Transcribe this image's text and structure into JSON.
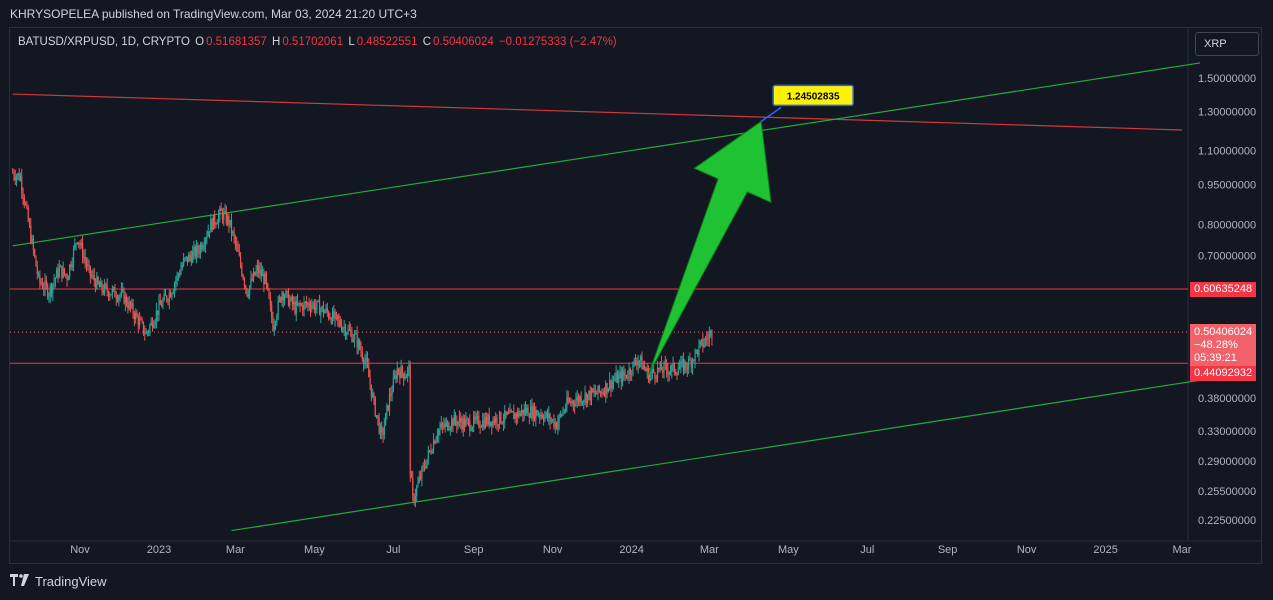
{
  "header": {
    "publisher_line": "KHRYSOPELEA published on TradingView.com, Mar 03, 2024 21:20 UTC+3"
  },
  "legend": {
    "symbol": "BATUSD/XRPUSD, 1D, CRYPTO",
    "open_label": "O",
    "open": "0.51681357",
    "high_label": "H",
    "high": "0.51702061",
    "low_label": "L",
    "low": "0.48522551",
    "close_label": "C",
    "close": "0.50406024",
    "change": "−0.01275333 (−2.47%)"
  },
  "symbol_button": "XRP",
  "footer": {
    "brand": "TradingView"
  },
  "price_badges": {
    "upper_level": "0.60635248",
    "current_price": "0.50406024",
    "current_change": "−48.28%",
    "current_countdown": "05:39:21",
    "lower_level": "0.44092932"
  },
  "colors": {
    "background": "#131722",
    "up": "#26a69a",
    "down": "#ef5350",
    "red_line": "#f23645",
    "green_line": "#22ab3a",
    "arrow": "#1fc233",
    "callout_bg": "#fff200"
  },
  "chart_data": {
    "type": "candlestick",
    "symbol": "BATUSD/XRPUSD",
    "interval": "1D",
    "y_scale": "log",
    "y_ticks": [
      {
        "label": "1.50000000",
        "value": 1.5
      },
      {
        "label": "1.30000000",
        "value": 1.3
      },
      {
        "label": "1.10000000",
        "value": 1.1
      },
      {
        "label": "0.95000000",
        "value": 0.95
      },
      {
        "label": "0.80000000",
        "value": 0.8
      },
      {
        "label": "0.70000000",
        "value": 0.7
      },
      {
        "label": "0.38000000",
        "value": 0.38
      },
      {
        "label": "0.33000000",
        "value": 0.33
      },
      {
        "label": "0.29000000",
        "value": 0.29
      },
      {
        "label": "0.25500000",
        "value": 0.255
      },
      {
        "label": "0.22500000",
        "value": 0.225
      }
    ],
    "x_ticks": [
      {
        "label": "Nov",
        "date": "2022-11-01"
      },
      {
        "label": "2023",
        "date": "2023-01-01"
      },
      {
        "label": "Mar",
        "date": "2023-03-01"
      },
      {
        "label": "May",
        "date": "2023-05-01"
      },
      {
        "label": "Jul",
        "date": "2023-07-01"
      },
      {
        "label": "Sep",
        "date": "2023-09-01"
      },
      {
        "label": "Nov",
        "date": "2023-11-01"
      },
      {
        "label": "2024",
        "date": "2024-01-01"
      },
      {
        "label": "Mar",
        "date": "2024-03-01"
      },
      {
        "label": "May",
        "date": "2024-05-01"
      },
      {
        "label": "Jul",
        "date": "2024-07-01"
      },
      {
        "label": "Sep",
        "date": "2024-09-01"
      },
      {
        "label": "Nov",
        "date": "2024-11-01"
      },
      {
        "label": "2025",
        "date": "2025-01-01"
      },
      {
        "label": "Mar",
        "date": "2025-03-01"
      }
    ],
    "price_path": [
      {
        "date": "2022-09-10",
        "price": 1.0
      },
      {
        "date": "2022-09-16",
        "price": 0.98
      },
      {
        "date": "2022-09-24",
        "price": 0.76
      },
      {
        "date": "2022-09-30",
        "price": 0.63
      },
      {
        "date": "2022-10-08",
        "price": 0.6
      },
      {
        "date": "2022-10-16",
        "price": 0.66
      },
      {
        "date": "2022-10-22",
        "price": 0.64
      },
      {
        "date": "2022-10-30",
        "price": 0.76
      },
      {
        "date": "2022-11-08",
        "price": 0.65
      },
      {
        "date": "2022-11-16",
        "price": 0.61
      },
      {
        "date": "2022-11-24",
        "price": 0.6
      },
      {
        "date": "2022-12-04",
        "price": 0.59
      },
      {
        "date": "2022-12-14",
        "price": 0.54
      },
      {
        "date": "2022-12-22",
        "price": 0.5
      },
      {
        "date": "2023-01-01",
        "price": 0.56
      },
      {
        "date": "2023-01-10",
        "price": 0.6
      },
      {
        "date": "2023-01-20",
        "price": 0.68
      },
      {
        "date": "2023-02-01",
        "price": 0.72
      },
      {
        "date": "2023-02-10",
        "price": 0.8
      },
      {
        "date": "2023-02-18",
        "price": 0.84
      },
      {
        "date": "2023-02-24",
        "price": 0.81
      },
      {
        "date": "2023-03-02",
        "price": 0.72
      },
      {
        "date": "2023-03-10",
        "price": 0.6
      },
      {
        "date": "2023-03-18",
        "price": 0.66
      },
      {
        "date": "2023-03-24",
        "price": 0.63
      },
      {
        "date": "2023-03-30",
        "price": 0.52
      },
      {
        "date": "2023-04-06",
        "price": 0.6
      },
      {
        "date": "2023-04-16",
        "price": 0.56
      },
      {
        "date": "2023-04-28",
        "price": 0.57
      },
      {
        "date": "2023-05-10",
        "price": 0.55
      },
      {
        "date": "2023-05-22",
        "price": 0.52
      },
      {
        "date": "2023-06-02",
        "price": 0.49
      },
      {
        "date": "2023-06-10",
        "price": 0.44
      },
      {
        "date": "2023-06-16",
        "price": 0.37
      },
      {
        "date": "2023-06-22",
        "price": 0.32
      },
      {
        "date": "2023-06-28",
        "price": 0.38
      },
      {
        "date": "2023-07-04",
        "price": 0.43
      },
      {
        "date": "2023-07-10",
        "price": 0.42
      },
      {
        "date": "2023-07-13",
        "price": 0.43
      },
      {
        "date": "2023-07-14",
        "price": 0.28
      },
      {
        "date": "2023-07-16",
        "price": 0.245
      },
      {
        "date": "2023-07-24",
        "price": 0.28
      },
      {
        "date": "2023-08-04",
        "price": 0.33
      },
      {
        "date": "2023-08-16",
        "price": 0.345
      },
      {
        "date": "2023-08-28",
        "price": 0.34
      },
      {
        "date": "2023-09-12",
        "price": 0.345
      },
      {
        "date": "2023-09-28",
        "price": 0.35
      },
      {
        "date": "2023-10-12",
        "price": 0.36
      },
      {
        "date": "2023-10-24",
        "price": 0.355
      },
      {
        "date": "2023-11-04",
        "price": 0.34
      },
      {
        "date": "2023-11-12",
        "price": 0.37
      },
      {
        "date": "2023-11-22",
        "price": 0.38
      },
      {
        "date": "2023-12-08",
        "price": 0.39
      },
      {
        "date": "2023-12-18",
        "price": 0.41
      },
      {
        "date": "2023-12-28",
        "price": 0.42
      },
      {
        "date": "2024-01-06",
        "price": 0.45
      },
      {
        "date": "2024-01-14",
        "price": 0.42
      },
      {
        "date": "2024-01-24",
        "price": 0.43
      },
      {
        "date": "2024-02-04",
        "price": 0.43
      },
      {
        "date": "2024-02-14",
        "price": 0.44
      },
      {
        "date": "2024-02-22",
        "price": 0.47
      },
      {
        "date": "2024-02-28",
        "price": 0.49
      },
      {
        "date": "2024-03-03",
        "price": 0.50406024
      }
    ],
    "horizontal_levels": [
      {
        "price": 0.60635248,
        "color": "red"
      },
      {
        "price": 0.44092932,
        "color": "red"
      },
      {
        "price": 0.50406024,
        "style": "dotted",
        "color": "red"
      }
    ],
    "trendlines": [
      {
        "color": "red",
        "from": {
          "date": "2022-09-10",
          "price": 1.4
        },
        "to": {
          "date": "2025-03-01",
          "price": 1.2
        }
      },
      {
        "color": "green",
        "from": {
          "date": "2022-09-10",
          "price": 0.73
        },
        "to": {
          "date": "2025-03-15",
          "price": 1.6
        }
      },
      {
        "color": "green",
        "from": {
          "date": "2023-02-26",
          "price": 0.215
        },
        "to": {
          "date": "2025-03-15",
          "price": 0.41
        }
      }
    ],
    "target_label": "1.24502835",
    "target_point": {
      "date": "2024-04-10",
      "price": 1.24502835
    },
    "arrow": {
      "from": {
        "date": "2024-01-14",
        "price": 0.42
      },
      "to": {
        "date": "2024-04-10",
        "price": 1.24502835
      }
    }
  }
}
